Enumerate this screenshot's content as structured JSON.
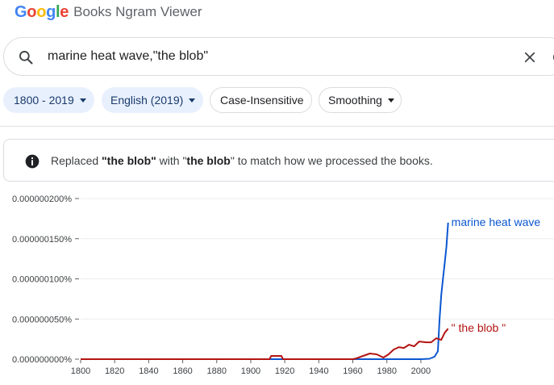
{
  "header": {
    "logo_text": "Google",
    "product_name": "Books Ngram Viewer"
  },
  "search": {
    "query": "marine heat wave,\"the blob\""
  },
  "filters": {
    "year_range": "1800 - 2019",
    "corpus": "English (2019)",
    "case": "Case-Insensitive",
    "smoothing": "Smoothing"
  },
  "notice": {
    "prefix": "Replaced ",
    "original_phrase": "\"the blob\"",
    "middle": " with \"",
    "replaced_phrase": "the blob",
    "suffix": "\" to match how we processed the books."
  },
  "colors": {
    "marine_heat_wave": "#0b57d0",
    "the_blob": "#b31412"
  },
  "chart_data": {
    "type": "line",
    "x_range": [
      1800,
      2019
    ],
    "y_range": [
      0,
      2e-07
    ],
    "y_unit": "%",
    "ytick_labels": [
      "0.000000000%",
      "0.000000050%",
      "0.000000100%",
      "0.000000150%",
      "0.000000200%"
    ],
    "xtick_labels": [
      "1800",
      "1820",
      "1840",
      "1860",
      "1880",
      "1900",
      "1920",
      "1940",
      "1960",
      "1980",
      "2000"
    ],
    "series": [
      {
        "name": "marine heat wave",
        "color": "#0b57d0",
        "points": [
          [
            1800,
            0
          ],
          [
            1960,
            0
          ],
          [
            2000,
            0
          ],
          [
            2005,
            5e-10
          ],
          [
            2008,
            3e-09
          ],
          [
            2010,
            1e-08
          ],
          [
            2011,
            5e-08
          ],
          [
            2012,
            8e-08
          ],
          [
            2013,
            1e-07
          ],
          [
            2014,
            1.2e-07
          ],
          [
            2015,
            1.4e-07
          ],
          [
            2016,
            1.7e-07
          ]
        ]
      },
      {
        "name": "\" the blob \"",
        "color": "#b31412",
        "points": [
          [
            1800,
            0
          ],
          [
            1911,
            0
          ],
          [
            1912,
            4e-09
          ],
          [
            1918,
            4e-09
          ],
          [
            1919,
            0
          ],
          [
            1960,
            0
          ],
          [
            1962,
            1e-09
          ],
          [
            1966,
            4e-09
          ],
          [
            1970,
            7e-09
          ],
          [
            1974,
            6e-09
          ],
          [
            1978,
            2e-09
          ],
          [
            1981,
            6e-09
          ],
          [
            1984,
            1.2e-08
          ],
          [
            1987,
            1.5e-08
          ],
          [
            1990,
            1.4e-08
          ],
          [
            1993,
            1.8e-08
          ],
          [
            1996,
            1.6e-08
          ],
          [
            1999,
            2.2e-08
          ],
          [
            2003,
            2.1e-08
          ],
          [
            2006,
            2.1e-08
          ],
          [
            2009,
            2.6e-08
          ],
          [
            2012,
            2.4e-08
          ],
          [
            2014,
            3.3e-08
          ],
          [
            2016,
            3.8e-08
          ]
        ]
      }
    ]
  }
}
